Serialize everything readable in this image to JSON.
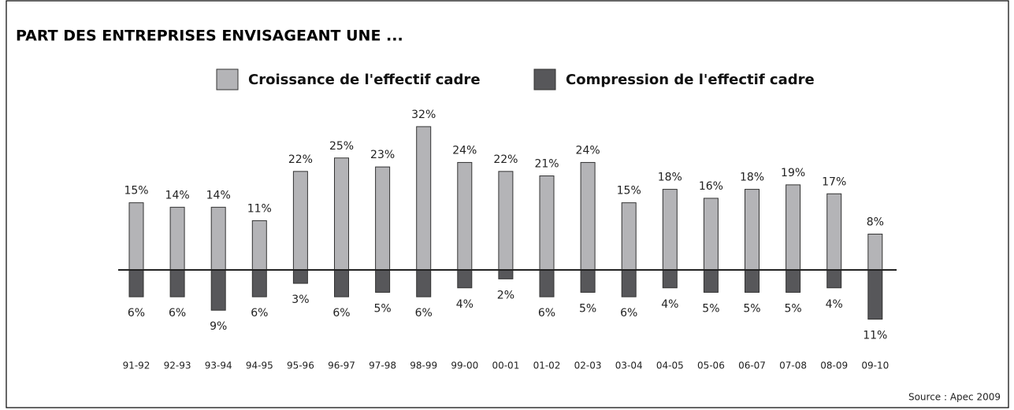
{
  "chart_data": {
    "type": "diverging_bar",
    "title": "PART DES ENTREPRISES ENVISAGEANT UNE ...",
    "source": "Source : Apec 2009",
    "categories": [
      "91-92",
      "92-93",
      "93-94",
      "94-95",
      "95-96",
      "96-97",
      "97-98",
      "98-99",
      "99-00",
      "00-01",
      "01-02",
      "02-03",
      "03-04",
      "04-05",
      "05-06",
      "06-07",
      "07-08",
      "08-09",
      "09-10"
    ],
    "series": [
      {
        "name": "Croissance de l'effectif cadre",
        "color": "#b4b4b7",
        "values": [
          15,
          14,
          14,
          11,
          22,
          25,
          23,
          32,
          24,
          22,
          21,
          24,
          15,
          18,
          16,
          18,
          19,
          17,
          8
        ],
        "value_labels": [
          "15%",
          "14%",
          "14%",
          "11%",
          "22%",
          "25%",
          "23%",
          "32%",
          "24%",
          "22%",
          "21%",
          "24%",
          "15%",
          "18%",
          "16%",
          "18%",
          "19%",
          "17%",
          "8%"
        ]
      },
      {
        "name": "Compression de l'effectif cadre",
        "color": "#57575a",
        "values": [
          6,
          6,
          9,
          6,
          3,
          6,
          5,
          6,
          4,
          2,
          6,
          5,
          6,
          4,
          5,
          5,
          5,
          4,
          11
        ],
        "value_labels": [
          "6%",
          "6%",
          "9%",
          "6%",
          "3%",
          "6%",
          "5%",
          "6%",
          "4%",
          "2%",
          "6%",
          "5%",
          "6%",
          "4%",
          "5%",
          "5%",
          "5%",
          "4%",
          "11%"
        ]
      }
    ]
  }
}
